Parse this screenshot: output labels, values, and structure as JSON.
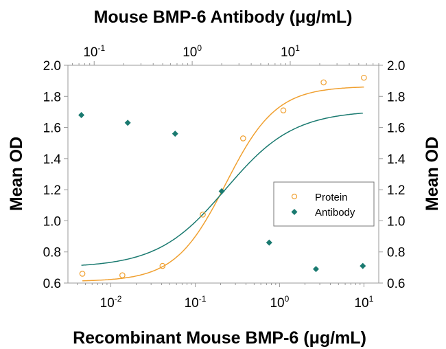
{
  "chart_data": {
    "type": "scatter",
    "title": "Mouse BMP-6 Antibody (μg/mL)",
    "xlabel": "Recombinant Mouse BMP-6 (μg/mL)",
    "ylabel_left": "Mean OD",
    "ylabel_right": "Mean OD",
    "x_scale": "log",
    "x2_scale": "log",
    "xlim": [
      0.0031,
      15
    ],
    "x2lim": [
      0.054,
      80
    ],
    "ylim": [
      0.6,
      2.0
    ],
    "yticks": [
      "0.6",
      "0.8",
      "1.0",
      "1.2",
      "1.4",
      "1.6",
      "1.8",
      "2.0"
    ],
    "xticks": [
      {
        "base": "10",
        "exp": "-2",
        "value": 0.01
      },
      {
        "base": "10",
        "exp": "-1",
        "value": 0.1
      },
      {
        "base": "10",
        "exp": "0",
        "value": 1
      },
      {
        "base": "10",
        "exp": "1",
        "value": 10
      }
    ],
    "x2ticks": [
      {
        "base": "10",
        "exp": "-1",
        "value": 0.1
      },
      {
        "base": "10",
        "exp": "0",
        "value": 1
      },
      {
        "base": "10",
        "exp": "1",
        "value": 10
      }
    ],
    "grid": false,
    "legend_position": "center-right",
    "series": [
      {
        "name": "Protein",
        "axis": "bottom",
        "marker": "open-circle",
        "color": "#F0A030",
        "x": [
          0.0046,
          0.0137,
          0.041,
          0.123,
          0.37,
          1.11,
          3.33,
          10
        ],
        "y": [
          0.66,
          0.65,
          0.71,
          1.04,
          1.53,
          1.71,
          1.89,
          1.92
        ],
        "fit": {
          "bottom": 0.61,
          "top": 1.865,
          "ec50": 0.23,
          "hill": 1.45
        }
      },
      {
        "name": "Antibody",
        "axis": "top",
        "marker": "filled-diamond",
        "color": "#1A7A70",
        "x": [
          0.074,
          0.22,
          0.67,
          2.0,
          6.1,
          18.3,
          55
        ],
        "y": [
          1.68,
          1.63,
          1.56,
          1.19,
          0.86,
          0.69,
          0.71
        ],
        "fit": {
          "bottom": 0.7,
          "top": 1.71,
          "ec50": 2.2,
          "hill": 1.25
        }
      }
    ]
  }
}
